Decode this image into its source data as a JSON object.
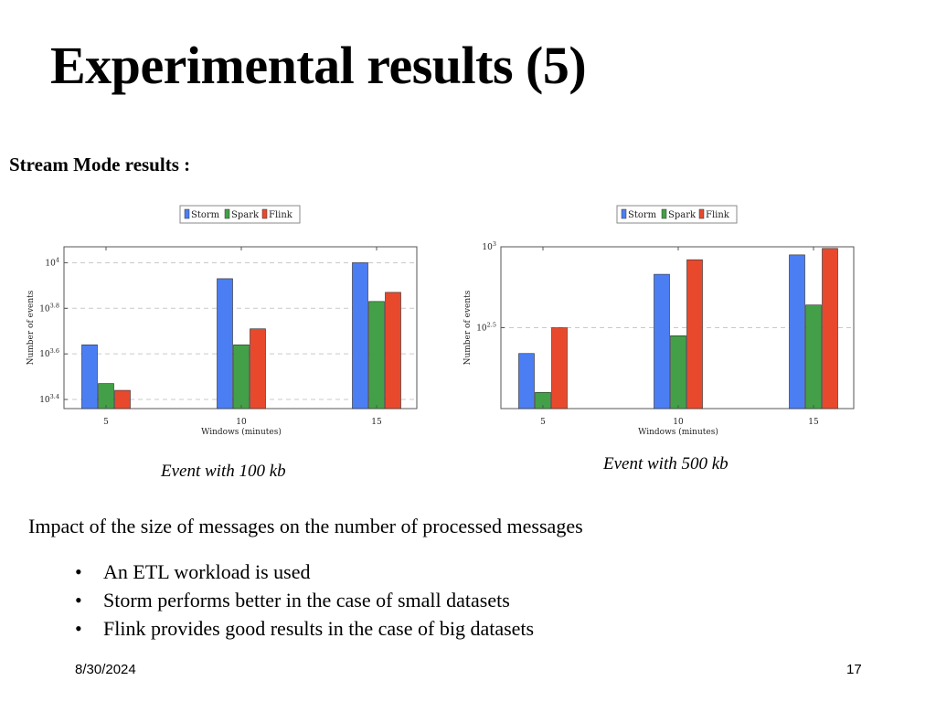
{
  "slide": {
    "title": "Experimental results (5)",
    "subtitle": "Stream Mode results :",
    "impact": "Impact of the size of messages on the number of processed messages",
    "bullets": [
      "An ETL workload is used",
      "Storm performs better in the case of small datasets",
      "Flink provides good results in the case of big datasets"
    ],
    "bullet_symbol": "•",
    "date": "8/30/2024",
    "page": "17"
  },
  "colors": {
    "Storm": "#4c7ef3",
    "Spark": "#43a048",
    "Flink": "#e8492d"
  },
  "chart_data": [
    {
      "type": "bar",
      "caption": "Event with 100 kb",
      "categories": [
        "5",
        "10",
        "15"
      ],
      "xlabel": "Windows (minutes)",
      "ylabel": "Number of events",
      "yscale": "log",
      "ylim_log10": [
        3.36,
        4.07
      ],
      "yticks": [
        {
          "exp": "3.4",
          "log10": 3.4
        },
        {
          "exp": "3.6",
          "log10": 3.6
        },
        {
          "exp": "3.8",
          "log10": 3.8
        },
        {
          "exp": "4",
          "log10": 4.0
        }
      ],
      "grid": true,
      "legend": "top-center",
      "series": [
        {
          "name": "Storm",
          "values": [
            4365,
            8511,
            10000
          ]
        },
        {
          "name": "Spark",
          "values": [
            2951,
            4365,
            6761
          ]
        },
        {
          "name": "Flink",
          "values": [
            2754,
            5129,
            7413
          ]
        }
      ]
    },
    {
      "type": "bar",
      "caption": "Event with 500 kb",
      "categories": [
        "5",
        "10",
        "15"
      ],
      "xlabel": "Windows (minutes)",
      "ylabel": "Number of events",
      "yscale": "log",
      "ylim_log10": [
        2.0,
        3.0
      ],
      "yticks": [
        {
          "exp": "2.5",
          "log10": 2.5
        },
        {
          "exp": "3",
          "log10": 3.0
        }
      ],
      "grid": true,
      "legend": "top-center",
      "series": [
        {
          "name": "Storm",
          "values": [
            219,
            676,
            891
          ]
        },
        {
          "name": "Spark",
          "values": [
            126,
            282,
            437
          ]
        },
        {
          "name": "Flink",
          "values": [
            316,
            832,
            977
          ]
        }
      ]
    }
  ]
}
